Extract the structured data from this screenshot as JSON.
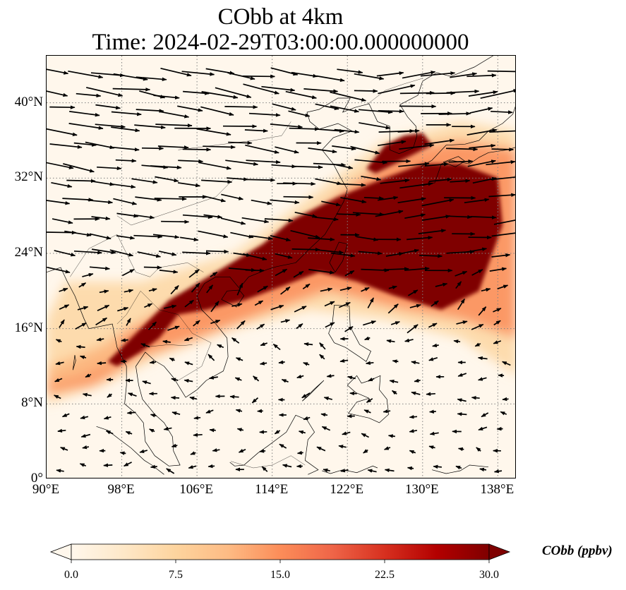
{
  "title": {
    "line1": "CObb at 4km",
    "line2": "Time: 2024-02-29T03:00:00.000000000"
  },
  "map": {
    "variable": "CObb",
    "extent": {
      "lon_min": 90,
      "lon_max": 140,
      "lat_min": 0,
      "lat_max": 45
    },
    "lat_ticks": [
      {
        "value": 0,
        "label": "0°"
      },
      {
        "value": 8,
        "label": "8°N"
      },
      {
        "value": 16,
        "label": "16°N"
      },
      {
        "value": 24,
        "label": "24°N"
      },
      {
        "value": 32,
        "label": "32°N"
      },
      {
        "value": 40,
        "label": "40°N"
      }
    ],
    "lon_ticks": [
      {
        "value": 90,
        "label": "90°E"
      },
      {
        "value": 98,
        "label": "98°E"
      },
      {
        "value": 106,
        "label": "106°E"
      },
      {
        "value": 114,
        "label": "114°E"
      },
      {
        "value": 122,
        "label": "122°E"
      },
      {
        "value": 130,
        "label": "130°E"
      },
      {
        "value": 138,
        "label": "138°E"
      }
    ],
    "gridlines": "dotted",
    "wind_vectors": true
  },
  "colorbar": {
    "label": "CObb (ppbv)",
    "min": 0.0,
    "max": 30.0,
    "extend": "both",
    "colormap": "OrRd",
    "colors": [
      "#fff7ec",
      "#fee8c8",
      "#fdd49e",
      "#fdbb84",
      "#fc8d59",
      "#ef6548",
      "#d7301f",
      "#b30000",
      "#7f0000"
    ],
    "ticks": [
      "0.0",
      "7.5",
      "15.0",
      "22.5",
      "30.0"
    ]
  }
}
